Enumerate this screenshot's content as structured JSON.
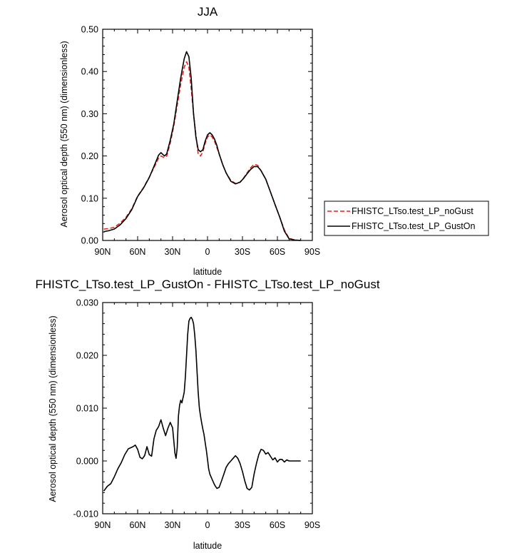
{
  "chart_data": [
    {
      "type": "line",
      "title": "JJA",
      "xlabel": "latitude",
      "ylabel": "Aerosol optical depth (550 nm) (dimensionless)",
      "xlim": [
        90,
        -90
      ],
      "ylim": [
        0,
        0.5
      ],
      "x_ticks": [
        90,
        60,
        30,
        0,
        -30,
        -60,
        -90
      ],
      "x_tick_labels": [
        "90N",
        "60N",
        "30N",
        "0",
        "30S",
        "60S",
        "90S"
      ],
      "y_ticks": [
        0,
        0.1,
        0.2,
        0.3,
        0.4,
        0.5
      ],
      "y_tick_labels": [
        "0.00",
        "0.10",
        "0.20",
        "0.30",
        "0.40",
        "0.50"
      ],
      "legend_position": "right",
      "grid": false,
      "series": [
        {
          "name": "FHISTC_LTso.test_LP_noGust",
          "color": "#e8221e",
          "dash": "dashed",
          "x": [
            89,
            85,
            80,
            75,
            70,
            65,
            60,
            55,
            50,
            45,
            42,
            40,
            37,
            35,
            32,
            29,
            26,
            23,
            20,
            18,
            16,
            14,
            12,
            10,
            8,
            6,
            4,
            2,
            0,
            -2,
            -4,
            -6,
            -8,
            -10,
            -13,
            -16,
            -20,
            -24,
            -28,
            -31,
            -34,
            -37,
            -40,
            -43,
            -46,
            -50,
            -54,
            -58,
            -62,
            -66,
            -70,
            -75,
            -80
          ],
          "y": [
            0.027,
            0.028,
            0.031,
            0.041,
            0.055,
            0.075,
            0.105,
            0.125,
            0.15,
            0.178,
            0.195,
            0.2,
            0.196,
            0.2,
            0.23,
            0.27,
            0.32,
            0.37,
            0.41,
            0.423,
            0.41,
            0.36,
            0.3,
            0.25,
            0.205,
            0.2,
            0.21,
            0.23,
            0.245,
            0.25,
            0.245,
            0.235,
            0.22,
            0.205,
            0.18,
            0.16,
            0.142,
            0.135,
            0.138,
            0.148,
            0.16,
            0.172,
            0.18,
            0.178,
            0.165,
            0.145,
            0.115,
            0.085,
            0.055,
            0.025,
            0.005,
            0.001,
            0.0
          ]
        },
        {
          "name": "FHISTC_LTso.test_LP_GustOn",
          "color": "#000000",
          "dash": "solid",
          "x": [
            89,
            85,
            80,
            75,
            70,
            65,
            60,
            55,
            50,
            45,
            42,
            40,
            37,
            35,
            32,
            29,
            26,
            23,
            20,
            18,
            16,
            14,
            12,
            10,
            8,
            6,
            4,
            2,
            0,
            -2,
            -4,
            -6,
            -8,
            -10,
            -13,
            -16,
            -20,
            -24,
            -28,
            -31,
            -34,
            -37,
            -40,
            -43,
            -46,
            -50,
            -54,
            -58,
            -62,
            -66,
            -70,
            -75,
            -80
          ],
          "y": [
            0.021,
            0.023,
            0.027,
            0.037,
            0.052,
            0.073,
            0.104,
            0.124,
            0.149,
            0.182,
            0.202,
            0.208,
            0.2,
            0.205,
            0.237,
            0.275,
            0.33,
            0.385,
            0.43,
            0.447,
            0.435,
            0.385,
            0.3,
            0.245,
            0.215,
            0.21,
            0.215,
            0.235,
            0.25,
            0.255,
            0.25,
            0.24,
            0.225,
            0.205,
            0.18,
            0.16,
            0.14,
            0.134,
            0.138,
            0.147,
            0.158,
            0.168,
            0.175,
            0.175,
            0.165,
            0.145,
            0.115,
            0.085,
            0.055,
            0.022,
            0.004,
            0.001,
            0.0
          ]
        }
      ]
    },
    {
      "type": "line",
      "title": "FHISTC_LTso.test_LP_GustOn - FHISTC_LTso.test_LP_noGust",
      "xlabel": "latitude",
      "ylabel": "Aerosol optical depth (550 nm) (dimensionless)",
      "xlim": [
        90,
        -90
      ],
      "ylim": [
        -0.01,
        0.03
      ],
      "x_ticks": [
        90,
        60,
        30,
        0,
        -30,
        -60,
        -90
      ],
      "x_tick_labels": [
        "90N",
        "60N",
        "30N",
        "0",
        "30S",
        "60S",
        "90S"
      ],
      "y_ticks": [
        -0.01,
        0,
        0.01,
        0.02,
        0.03
      ],
      "y_tick_labels": [
        "-0.010",
        "0.000",
        "0.010",
        "0.020",
        "0.030"
      ],
      "grid": false,
      "series": [
        {
          "color": "#000000",
          "x": [
            89,
            86,
            83,
            80,
            77,
            74,
            71,
            68,
            66,
            64,
            62,
            60,
            58,
            56,
            54,
            52,
            50,
            48,
            46,
            44,
            42,
            40,
            38,
            36,
            34,
            32,
            30,
            29,
            28,
            27,
            26,
            25,
            24,
            23,
            22,
            21,
            20,
            19,
            18,
            17,
            16,
            15,
            14,
            13,
            12,
            11,
            10,
            9,
            8,
            7,
            6,
            5,
            4,
            3,
            2,
            1,
            0,
            -1,
            -2,
            -4,
            -6,
            -8,
            -10,
            -12,
            -14,
            -16,
            -18,
            -20,
            -22,
            -24,
            -26,
            -28,
            -30,
            -32,
            -34,
            -36,
            -38,
            -40,
            -42,
            -44,
            -46,
            -48,
            -50,
            -52,
            -54,
            -56,
            -58,
            -60,
            -62,
            -64,
            -66,
            -68,
            -70,
            -72,
            -74,
            -76,
            -78,
            -80
          ],
          "y": [
            -0.0057,
            -0.0048,
            -0.0043,
            -0.003,
            -0.0015,
            -0.0003,
            0.0012,
            0.0023,
            0.0025,
            0.0027,
            0.003,
            0.0022,
            0.0007,
            0.0004,
            0.001,
            0.0027,
            0.0012,
            0.0009,
            0.0042,
            0.0058,
            0.0065,
            0.0078,
            0.0062,
            0.0048,
            0.0062,
            0.0073,
            0.0063,
            0.004,
            0.0015,
            0.0005,
            0.0025,
            0.0085,
            0.0105,
            0.0115,
            0.011,
            0.012,
            0.013,
            0.016,
            0.02,
            0.024,
            0.0265,
            0.027,
            0.0272,
            0.0268,
            0.026,
            0.024,
            0.021,
            0.017,
            0.013,
            0.01,
            0.0085,
            0.0072,
            0.006,
            0.005,
            0.0035,
            0.002,
            0.0003,
            -0.0015,
            -0.0025,
            -0.0035,
            -0.0045,
            -0.0052,
            -0.005,
            -0.0038,
            -0.0025,
            -0.0012,
            -0.0005,
            0.0,
            0.0005,
            0.001,
            0.0005,
            -0.0005,
            -0.002,
            -0.0038,
            -0.0052,
            -0.0055,
            -0.005,
            -0.0025,
            -0.0005,
            0.0012,
            0.0022,
            0.002,
            0.0013,
            0.0016,
            0.0009,
            0.0002,
            0.0006,
            -0.0002,
            0.0003,
            0.0003,
            -0.0002,
            0.0002,
            0.0,
            0.0,
            0.0,
            0.0,
            0.0,
            0.0
          ]
        }
      ]
    }
  ]
}
